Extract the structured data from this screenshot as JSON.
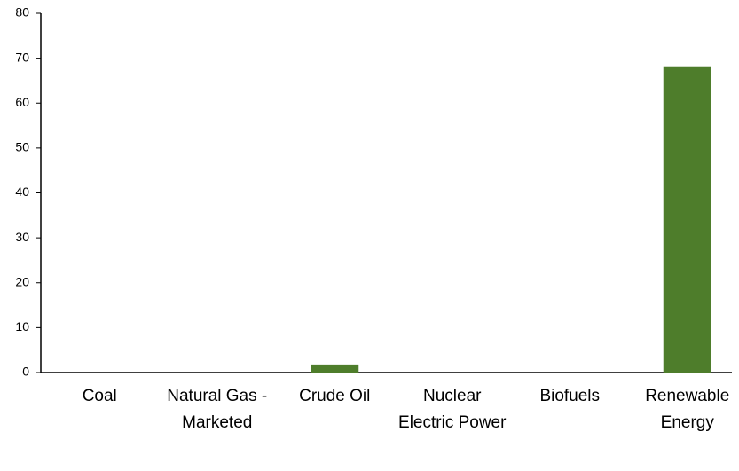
{
  "chart_data": {
    "type": "bar",
    "categories": [
      "Coal",
      "Natural Gas - Marketed",
      "Crude Oil",
      "Nuclear Electric Power",
      "Biofuels",
      "Renewable Energy"
    ],
    "values": [
      0,
      0,
      1.8,
      0,
      0,
      68.2
    ],
    "color": "#4e7d2b",
    "ylim": [
      0,
      80
    ],
    "yticks": [
      0,
      10,
      20,
      30,
      40,
      50,
      60,
      70,
      80
    ],
    "grid": false
  }
}
